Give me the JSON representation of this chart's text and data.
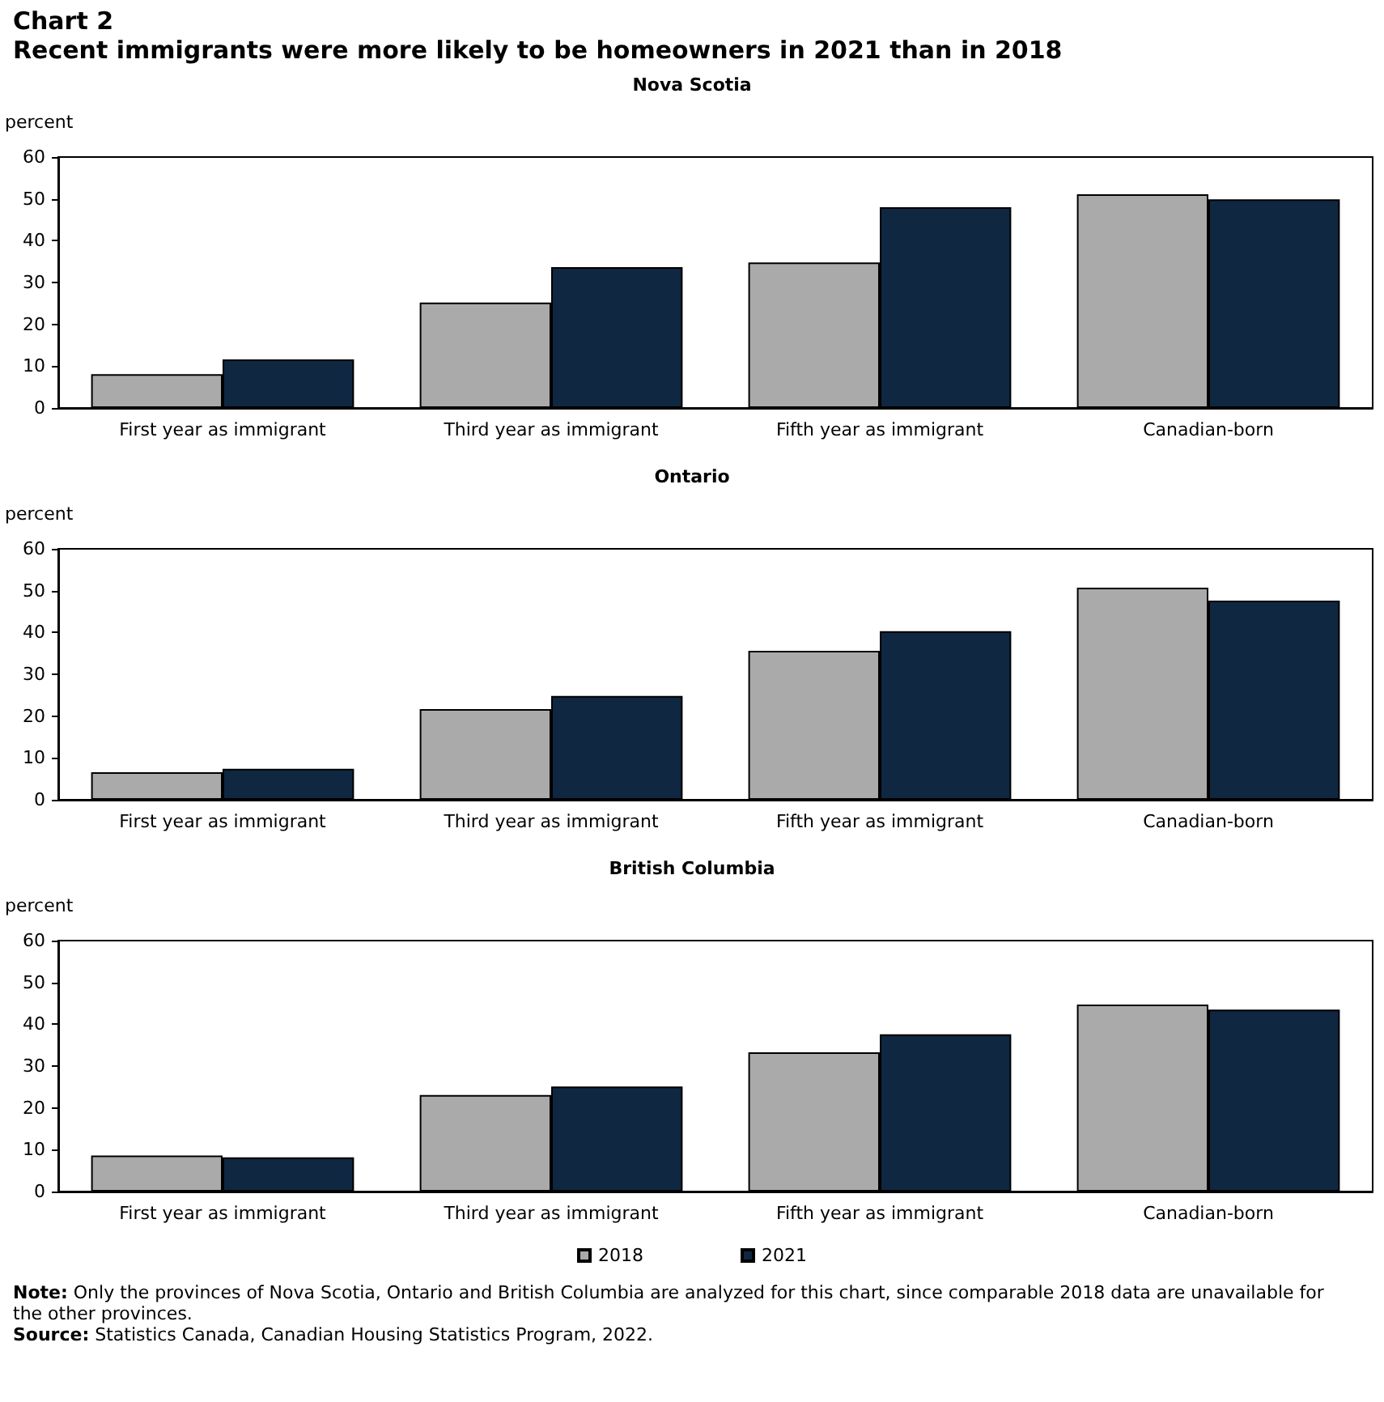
{
  "chart_data": [
    {
      "type": "other",
      "title": "Chart 2",
      "subtitle": "Recent immigrants were more likely to be homeowners in 2021 than in 2018"
    },
    {
      "type": "bar",
      "title": "Nova Scotia",
      "ylabel": "percent",
      "categories": [
        "First year as immigrant",
        "Third year as immigrant",
        "Fifth year as immigrant",
        "Canadian-born"
      ],
      "ylim": [
        0,
        60
      ],
      "yticks": [
        0,
        10,
        20,
        30,
        40,
        50,
        60
      ],
      "series": [
        {
          "color": "#aaaaaa",
          "values": [
            8.1,
            25.2,
            34.8,
            51.1
          ]
        },
        {
          "color": "#0f2741",
          "values": [
            11.6,
            33.7,
            48.0,
            49.9
          ]
        }
      ]
    },
    {
      "type": "bar",
      "title": "Ontario",
      "ylabel": "percent",
      "categories": [
        "First year as immigrant",
        "Third year as immigrant",
        "Fifth year as immigrant",
        "Canadian-born"
      ],
      "ylim": [
        0,
        60
      ],
      "yticks": [
        0,
        10,
        20,
        30,
        40,
        50,
        60
      ],
      "series": [
        {
          "color": "#aaaaaa",
          "values": [
            6.6,
            21.7,
            35.6,
            50.7
          ]
        },
        {
          "color": "#0f2741",
          "values": [
            7.4,
            24.8,
            40.3,
            47.6
          ]
        }
      ]
    },
    {
      "type": "bar",
      "title": "British Columbia",
      "ylabel": "percent",
      "categories": [
        "First year as immigrant",
        "Third year as immigrant",
        "Fifth year as immigrant",
        "Canadian-born"
      ],
      "ylim": [
        0,
        60
      ],
      "yticks": [
        0,
        10,
        20,
        30,
        40,
        50,
        60
      ],
      "legend": "bottom",
      "series": [
        {
          "name": "2018",
          "color": "#aaaaaa",
          "values": [
            8.6,
            23.1,
            33.3,
            44.7
          ]
        },
        {
          "name": "2021",
          "color": "#0f2741",
          "values": [
            8.2,
            25.1,
            37.6,
            43.5
          ]
        }
      ]
    },
    {
      "type": "other",
      "annotations": [
        "Note: Only the provinces of Nova Scotia, Ontario and British Columbia are analyzed for this chart, since comparable 2018 data are unavailable for the other provinces.",
        "Source: Statistics Canada, Canadian Housing Statistics Program, 2022."
      ]
    }
  ]
}
